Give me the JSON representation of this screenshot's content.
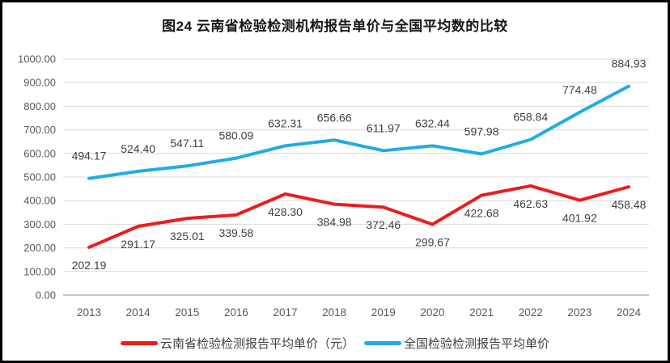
{
  "page": {
    "background": "#ffffff",
    "frame_color": "#000000"
  },
  "chart_data": {
    "type": "line",
    "title": "图24 云南省检验检测机构报告单价与全国平均数的比较",
    "categories": [
      "2013",
      "2014",
      "2015",
      "2016",
      "2017",
      "2018",
      "2019",
      "2020",
      "2021",
      "2022",
      "2023",
      "2024"
    ],
    "series": [
      {
        "key": "yunnan",
        "name": "云南省检验检测报告平均单价（元）",
        "color": "#ed1c1c",
        "values": [
          202.19,
          291.17,
          325.01,
          339.58,
          428.3,
          384.98,
          372.46,
          299.67,
          422.68,
          462.63,
          401.92,
          458.48
        ],
        "label_position": "below"
      },
      {
        "key": "national",
        "name": "全国检验检测报告平均单价",
        "color": "#22ace4",
        "values": [
          494.17,
          524.4,
          547.11,
          580.09,
          632.31,
          656.66,
          611.97,
          632.44,
          597.98,
          658.84,
          774.48,
          884.93
        ],
        "label_position": "above"
      }
    ],
    "ylim": [
      0,
      1000
    ],
    "ytick_step": 100,
    "value_decimals": 2,
    "grid": true,
    "legend_position": "bottom",
    "xlabel": "",
    "ylabel": ""
  },
  "styles": {
    "grid_color": "#d9d9d9",
    "axis_line_color": "#b3b3b3",
    "tick_label_color": "#595959",
    "data_label_color": "#404040",
    "title_color": "#161616"
  }
}
